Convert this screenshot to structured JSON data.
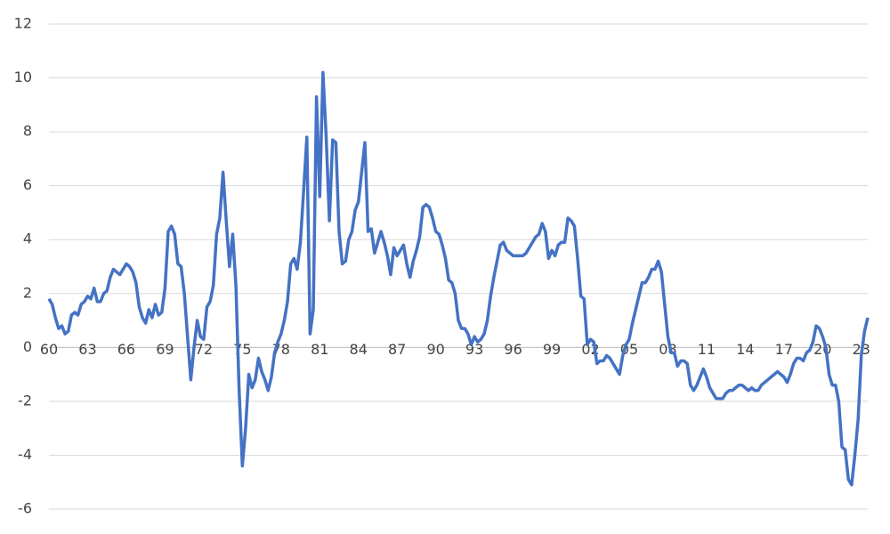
{
  "chart_data": {
    "type": "line",
    "categories": [
      "60",
      null,
      null,
      null,
      null,
      null,
      null,
      null,
      null,
      null,
      null,
      null,
      "63",
      null,
      null,
      null,
      null,
      null,
      null,
      null,
      null,
      null,
      null,
      null,
      "66",
      null,
      null,
      null,
      null,
      null,
      null,
      null,
      null,
      null,
      null,
      null,
      "69",
      null,
      null,
      null,
      null,
      null,
      null,
      null,
      null,
      null,
      null,
      null,
      "72",
      null,
      null,
      null,
      null,
      null,
      null,
      null,
      null,
      null,
      null,
      null,
      "75",
      null,
      null,
      null,
      null,
      null,
      null,
      null,
      null,
      null,
      null,
      null,
      "78",
      null,
      null,
      null,
      null,
      null,
      null,
      null,
      null,
      null,
      null,
      null,
      "81",
      null,
      null,
      null,
      null,
      null,
      null,
      null,
      null,
      null,
      null,
      null,
      "84",
      null,
      null,
      null,
      null,
      null,
      null,
      null,
      null,
      null,
      null,
      null,
      "87",
      null,
      null,
      null,
      null,
      null,
      null,
      null,
      null,
      null,
      null,
      null,
      "90",
      null,
      null,
      null,
      null,
      null,
      null,
      null,
      null,
      null,
      null,
      null,
      "93",
      null,
      null,
      null,
      null,
      null,
      null,
      null,
      null,
      null,
      null,
      null,
      "96",
      null,
      null,
      null,
      null,
      null,
      null,
      null,
      null,
      null,
      null,
      null,
      "99",
      null,
      null,
      null,
      null,
      null,
      null,
      null,
      null,
      null,
      null,
      null,
      "02",
      null,
      null,
      null,
      null,
      null,
      null,
      null,
      null,
      null,
      null,
      null,
      "05",
      null,
      null,
      null,
      null,
      null,
      null,
      null,
      null,
      null,
      null,
      null,
      "08",
      null,
      null,
      null,
      null,
      null,
      null,
      null,
      null,
      null,
      null,
      null,
      "11",
      null,
      null,
      null,
      null,
      null,
      null,
      null,
      null,
      null,
      null,
      null,
      "14",
      null,
      null,
      null,
      null,
      null,
      null,
      null,
      null,
      null,
      null,
      null,
      "17",
      null,
      null,
      null,
      null,
      null,
      null,
      null,
      null,
      null,
      null,
      null,
      "20",
      null,
      null,
      null,
      null,
      null,
      null,
      null,
      null,
      null,
      null,
      null,
      "23",
      null,
      null
    ],
    "values": [
      1.8,
      1.6,
      1.1,
      0.7,
      0.8,
      0.5,
      0.6,
      1.2,
      1.3,
      1.2,
      1.6,
      1.7,
      1.9,
      1.8,
      2.2,
      1.7,
      1.7,
      2.0,
      2.1,
      2.6,
      2.9,
      2.8,
      2.7,
      2.9,
      3.1,
      3.0,
      2.8,
      2.4,
      1.5,
      1.1,
      0.9,
      1.4,
      1.1,
      1.6,
      1.2,
      1.3,
      2.2,
      4.3,
      4.5,
      4.2,
      3.1,
      3.0,
      2.0,
      0.4,
      -1.2,
      0.0,
      1.0,
      0.4,
      0.3,
      1.5,
      1.7,
      2.3,
      4.2,
      4.8,
      6.5,
      4.7,
      3.0,
      4.2,
      2.3,
      -1.6,
      -4.4,
      -3.0,
      -1.0,
      -1.5,
      -1.2,
      -0.4,
      -0.9,
      -1.2,
      -1.6,
      -1.1,
      -0.2,
      0.2,
      0.5,
      1.0,
      1.7,
      3.1,
      3.3,
      2.9,
      3.9,
      5.8,
      7.8,
      0.5,
      1.4,
      9.3,
      5.6,
      10.2,
      7.8,
      4.7,
      7.7,
      7.6,
      4.3,
      3.1,
      3.2,
      4.0,
      4.3,
      5.1,
      5.4,
      6.5,
      7.6,
      4.3,
      4.4,
      3.5,
      3.9,
      4.3,
      3.9,
      3.4,
      2.7,
      3.7,
      3.4,
      3.6,
      3.8,
      3.1,
      2.6,
      3.2,
      3.6,
      4.1,
      5.2,
      5.3,
      5.2,
      4.8,
      4.3,
      4.2,
      3.8,
      3.3,
      2.5,
      2.4,
      2.0,
      1.0,
      0.7,
      0.7,
      0.5,
      0.1,
      0.4,
      0.2,
      0.3,
      0.5,
      1.0,
      1.9,
      2.6,
      3.2,
      3.8,
      3.9,
      3.6,
      3.5,
      3.4,
      3.4,
      3.4,
      3.4,
      3.5,
      3.7,
      3.9,
      4.1,
      4.2,
      4.6,
      4.3,
      3.3,
      3.6,
      3.4,
      3.8,
      3.9,
      3.9,
      4.8,
      4.7,
      4.5,
      3.3,
      1.9,
      1.8,
      0.1,
      0.3,
      0.2,
      -0.6,
      -0.5,
      -0.5,
      -0.3,
      -0.4,
      -0.6,
      -0.8,
      -1.0,
      -0.3,
      0.1,
      0.3,
      0.9,
      1.4,
      1.9,
      2.4,
      2.4,
      2.6,
      2.9,
      2.9,
      3.2,
      2.8,
      1.6,
      0.4,
      -0.2,
      -0.2,
      -0.7,
      -0.5,
      -0.5,
      -0.6,
      -1.4,
      -1.6,
      -1.4,
      -1.1,
      -0.8,
      -1.1,
      -1.5,
      -1.7,
      -1.9,
      -1.9,
      -1.9,
      -1.7,
      -1.6,
      -1.6,
      -1.5,
      -1.4,
      -1.4,
      -1.5,
      -1.6,
      -1.5,
      -1.6,
      -1.6,
      -1.4,
      -1.3,
      -1.2,
      -1.1,
      -1.0,
      -0.9,
      -1.0,
      -1.1,
      -1.3,
      -1.0,
      -0.6,
      -0.4,
      -0.4,
      -0.5,
      -0.2,
      -0.1,
      0.2,
      0.8,
      0.7,
      0.4,
      0.0,
      -1.0,
      -1.4,
      -1.4,
      -2.0,
      -3.7,
      -3.8,
      -4.9,
      -5.1,
      -4.0,
      -2.7,
      -0.3,
      0.6,
      1.1
    ],
    "color": "#4472c4",
    "ylim": [
      -6,
      12
    ],
    "yticks": [
      -6,
      -4,
      -2,
      0,
      2,
      4,
      6,
      8,
      10,
      12
    ],
    "grid": true
  }
}
